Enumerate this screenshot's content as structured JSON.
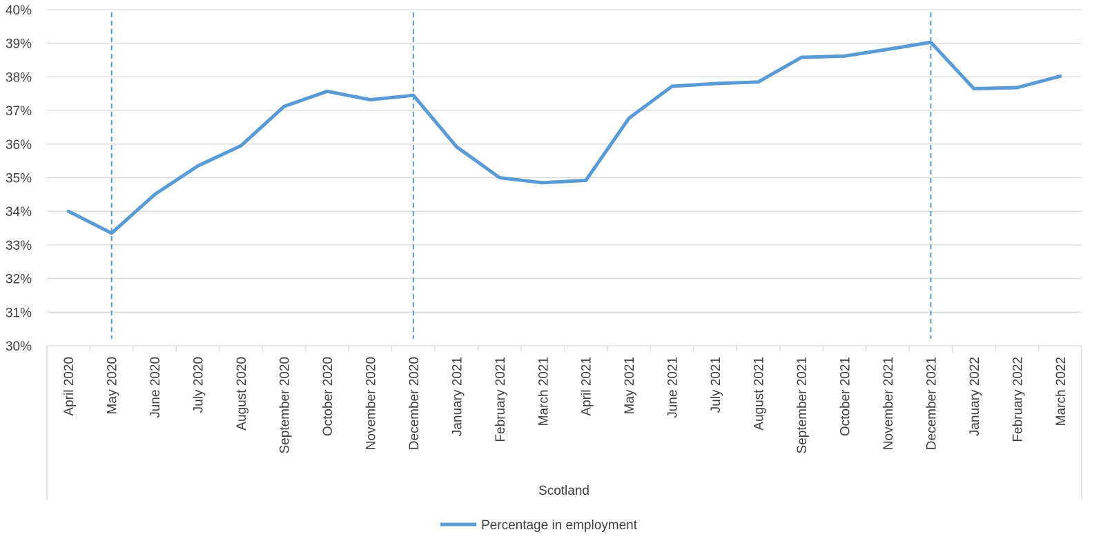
{
  "chart_data": {
    "type": "line",
    "title": "",
    "xlabel": "",
    "ylabel": "",
    "group_label": "Scotland",
    "categories": [
      "April 2020",
      "May 2020",
      "June 2020",
      "July 2020",
      "August 2020",
      "September 2020",
      "October 2020",
      "November 2020",
      "December 2020",
      "January 2021",
      "February 2021",
      "March 2021",
      "April 2021",
      "May 2021",
      "June 2021",
      "July 2021",
      "August 2021",
      "September 2021",
      "October 2021",
      "November 2021",
      "December 2021",
      "January 2022",
      "February 2022",
      "March 2022"
    ],
    "series": [
      {
        "name": "Percentage in employment",
        "color": "#5B9BD5",
        "values": [
          34.0,
          33.35,
          34.5,
          35.35,
          35.95,
          37.12,
          37.57,
          37.32,
          37.45,
          35.92,
          35.0,
          34.85,
          34.92,
          36.77,
          37.72,
          37.8,
          37.85,
          38.58,
          38.62,
          38.82,
          39.03,
          37.65,
          37.68,
          38.02
        ]
      }
    ],
    "ylim": [
      30,
      40
    ],
    "yticks": [
      "30%",
      "31%",
      "32%",
      "33%",
      "34%",
      "35%",
      "36%",
      "37%",
      "38%",
      "39%",
      "40%"
    ],
    "y_tick_values": [
      30,
      31,
      32,
      33,
      34,
      35,
      36,
      37,
      38,
      39,
      40
    ],
    "vertical_markers": [
      "May 2020",
      "December 2020",
      "December 2021"
    ],
    "marker_color": "#5B9BD5",
    "grid": true,
    "gridline_color": "#D9D9D9",
    "legend_position": "bottom"
  }
}
